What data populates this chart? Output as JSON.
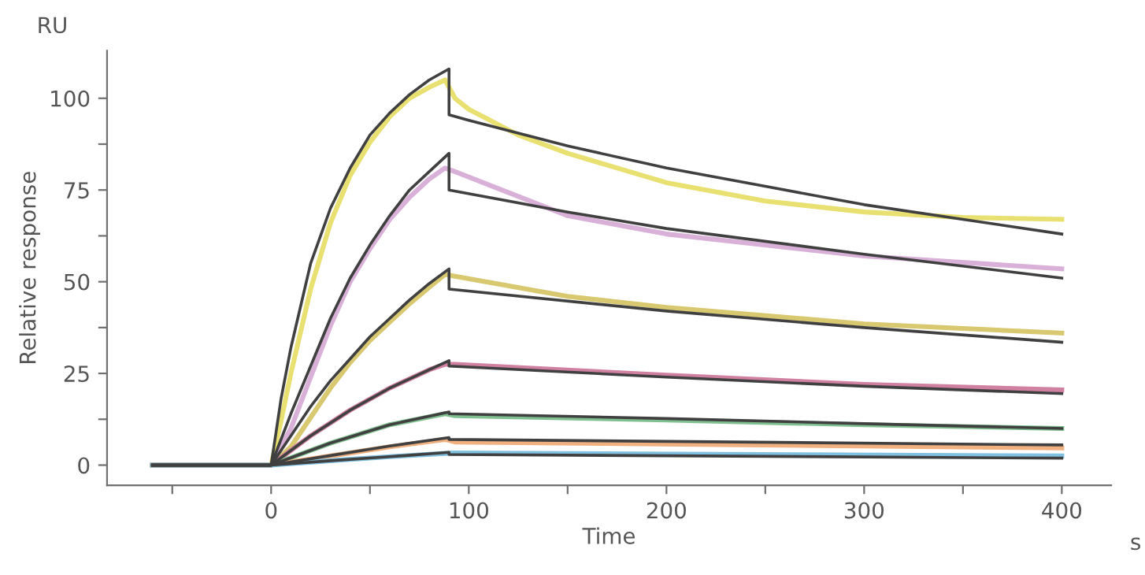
{
  "chart_data": {
    "type": "line",
    "xlabel": "Time",
    "ylabel": "Relative response",
    "annotations": [
      "RU",
      "s"
    ],
    "xlim": [
      -83,
      425
    ],
    "ylim": [
      -5.5,
      113
    ],
    "xticks": [
      {
        "value": -50,
        "label": null
      },
      0,
      {
        "value": 50,
        "label": null
      },
      100,
      {
        "value": 150,
        "label": null
      },
      200,
      {
        "value": 250,
        "label": null
      },
      300,
      {
        "value": 350,
        "label": null
      },
      400
    ],
    "yticks": [
      0,
      {
        "value": 12.5,
        "label": null
      },
      25,
      {
        "value": 37.5,
        "label": null
      },
      50,
      {
        "value": 62.5,
        "label": null
      },
      75,
      {
        "value": 87.5,
        "label": null
      },
      100
    ],
    "grid": false,
    "legend": false,
    "marker": "none",
    "line_style": "solid",
    "series": [
      {
        "color": "#e8e070",
        "x": [
          -60,
          0,
          5,
          10,
          20,
          30,
          40,
          50,
          60,
          70,
          80,
          88,
          93,
          100,
          125,
          150,
          200,
          250,
          300,
          350,
          400
        ],
        "values": [
          0,
          0,
          12,
          25,
          48,
          66,
          79,
          88,
          95,
          100,
          103,
          105,
          100,
          97,
          90,
          85,
          77,
          72,
          69,
          67.5,
          67
        ]
      },
      {
        "color": "#d8b0d8",
        "x": [
          -60,
          0,
          10,
          20,
          30,
          40,
          50,
          60,
          70,
          80,
          88,
          93,
          150,
          200,
          300,
          400
        ],
        "values": [
          0,
          0,
          10,
          24,
          38,
          50,
          59,
          67,
          73,
          78,
          81,
          80,
          68,
          63,
          57,
          53.5
        ]
      },
      {
        "color": "#d8c870",
        "x": [
          -60,
          0,
          10,
          20,
          30,
          40,
          50,
          60,
          70,
          80,
          88,
          93,
          150,
          200,
          300,
          400
        ],
        "values": [
          0,
          0,
          5,
          13,
          21,
          28,
          34,
          39,
          44,
          48.5,
          52,
          51.5,
          46,
          43,
          38.5,
          36
        ]
      },
      {
        "color": "#d080a0",
        "x": [
          -60,
          0,
          20,
          40,
          60,
          80,
          88,
          93,
          200,
          300,
          400
        ],
        "values": [
          0,
          0,
          8,
          15,
          21,
          26,
          27.5,
          27.5,
          24.5,
          22,
          20.5
        ]
      },
      {
        "color": "#80c090",
        "x": [
          -60,
          0,
          30,
          60,
          88,
          93,
          200,
          300,
          400
        ],
        "values": [
          0,
          0,
          6,
          11,
          14,
          13.5,
          12.3,
          11,
          10
        ]
      },
      {
        "color": "#f0b080",
        "x": [
          -60,
          0,
          30,
          60,
          88,
          93,
          400
        ],
        "values": [
          0,
          0,
          2.5,
          5,
          7,
          6.3,
          4.7
        ]
      },
      {
        "color": "#80c0e0",
        "x": [
          -60,
          0,
          30,
          60,
          88,
          93,
          400
        ],
        "values": [
          0,
          0,
          1.2,
          2.3,
          3.2,
          3.3,
          2.5
        ]
      },
      {
        "color": "#404040",
        "x": [
          -60,
          0,
          5,
          10,
          20,
          30,
          40,
          50,
          60,
          70,
          80,
          90,
          90,
          100,
          150,
          200,
          250,
          300,
          350,
          400
        ],
        "values": [
          0,
          0,
          18,
          32,
          55,
          70,
          81,
          90,
          96,
          101,
          105,
          108,
          95.5,
          94,
          87,
          81,
          76,
          71,
          67,
          63
        ]
      },
      {
        "color": "#404040",
        "x": [
          -60,
          0,
          10,
          20,
          30,
          40,
          50,
          60,
          70,
          80,
          90,
          90,
          150,
          200,
          300,
          400
        ],
        "values": [
          0,
          0,
          14,
          27,
          40,
          51,
          60,
          68,
          75,
          80,
          85,
          75,
          69,
          64.5,
          57.5,
          51
        ]
      },
      {
        "color": "#404040",
        "x": [
          -60,
          0,
          10,
          20,
          30,
          40,
          50,
          60,
          70,
          80,
          90,
          90,
          200,
          300,
          400
        ],
        "values": [
          0,
          0,
          8,
          16,
          23,
          29,
          35,
          40,
          45,
          49.5,
          53.5,
          48,
          42,
          37.5,
          33.5
        ]
      },
      {
        "color": "#404040",
        "x": [
          -60,
          0,
          20,
          40,
          60,
          80,
          90,
          90,
          200,
          300,
          400
        ],
        "values": [
          0,
          0,
          8,
          15,
          21,
          26,
          28.5,
          27,
          24,
          21.5,
          19.5
        ]
      },
      {
        "color": "#404040",
        "x": [
          -60,
          0,
          30,
          60,
          90,
          90,
          200,
          300,
          400
        ],
        "values": [
          0,
          0,
          6,
          11,
          14.5,
          14,
          12.7,
          11.3,
          10
        ]
      },
      {
        "color": "#404040",
        "x": [
          -60,
          0,
          30,
          60,
          90,
          90,
          400
        ],
        "values": [
          0,
          0,
          2.6,
          5.2,
          7.5,
          7,
          5.5
        ]
      },
      {
        "color": "#404040",
        "x": [
          -60,
          0,
          30,
          60,
          90,
          90,
          400
        ],
        "values": [
          0,
          0,
          1.2,
          2.3,
          3.5,
          2.9,
          1.9
        ]
      }
    ]
  }
}
